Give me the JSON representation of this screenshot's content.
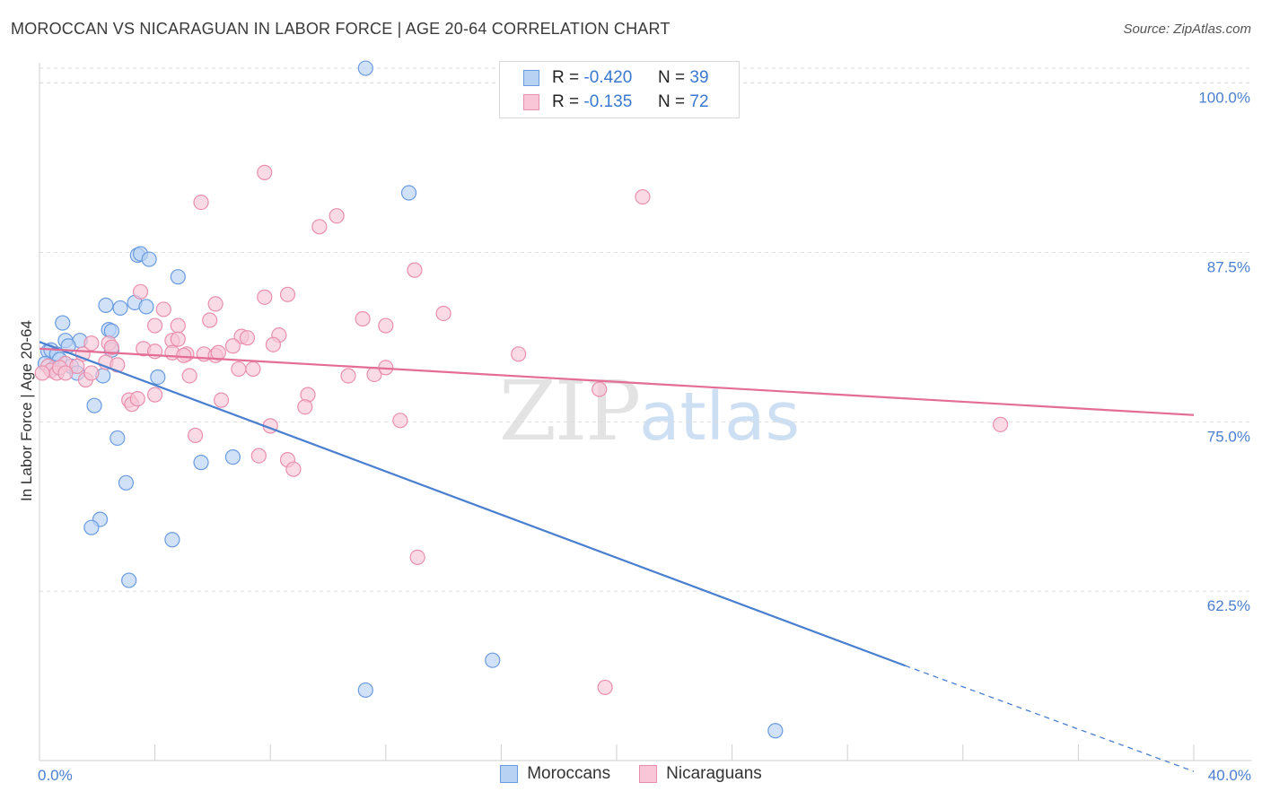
{
  "title": "MOROCCAN VS NICARAGUAN IN LABOR FORCE | AGE 20-64 CORRELATION CHART",
  "source": "Source: ZipAtlas.com",
  "watermark": {
    "zip": "ZIP",
    "atlas": "atlas"
  },
  "colors": {
    "blue": "#4a7fd0",
    "blue_fill": "#b8d2f4",
    "pink": "#e46d96",
    "pink_fill": "#f8c6d6",
    "grid": "#dcdcdc"
  },
  "legend_top": [
    {
      "r_label": "R =",
      "r_value": "-0.420",
      "n_label": "N =",
      "n_value": "39"
    },
    {
      "r_label": "R =",
      "r_value": "-0.135",
      "n_label": "N =",
      "n_value": "72"
    }
  ],
  "legend_bottom": [
    "Moroccans",
    "Nicaraguans"
  ],
  "chart_data": {
    "type": "scatter",
    "xlabel": "",
    "ylabel": "In Labor Force | Age 20-64",
    "xlim": [
      0,
      40
    ],
    "ylim": [
      50,
      101.5
    ],
    "x_tick_labels": [
      {
        "value": 0,
        "label": "0.0%"
      },
      {
        "value": 40,
        "label": "40.0%"
      }
    ],
    "y_tick_labels": [
      {
        "value": 100,
        "label": "100.0%"
      },
      {
        "value": 87.5,
        "label": "87.5%"
      },
      {
        "value": 75,
        "label": "75.0%"
      },
      {
        "value": 62.5,
        "label": "62.5%"
      }
    ],
    "series": [
      {
        "name": "Moroccans",
        "r": -0.42,
        "n": 39,
        "trend": {
          "x": [
            0,
            30.0
          ],
          "y": [
            80.9,
            57.0
          ],
          "dashed_to": [
            40.0,
            49.2
          ]
        },
        "points": [
          [
            11.3,
            101.1
          ],
          [
            12.8,
            91.9
          ],
          [
            3.4,
            87.3
          ],
          [
            3.5,
            87.4
          ],
          [
            3.8,
            87.0
          ],
          [
            4.8,
            85.7
          ],
          [
            2.3,
            83.6
          ],
          [
            2.8,
            83.4
          ],
          [
            3.3,
            83.8
          ],
          [
            3.7,
            83.5
          ],
          [
            0.8,
            82.3
          ],
          [
            2.4,
            81.8
          ],
          [
            2.5,
            81.7
          ],
          [
            0.9,
            81.0
          ],
          [
            1.4,
            81.0
          ],
          [
            1.0,
            80.6
          ],
          [
            0.3,
            80.2
          ],
          [
            0.4,
            80.3
          ],
          [
            0.6,
            80.0
          ],
          [
            0.7,
            79.6
          ],
          [
            0.2,
            79.3
          ],
          [
            0.5,
            79.0
          ],
          [
            1.1,
            79.1
          ],
          [
            1.3,
            78.6
          ],
          [
            2.2,
            78.4
          ],
          [
            4.1,
            78.3
          ],
          [
            2.5,
            80.3
          ],
          [
            1.9,
            76.2
          ],
          [
            2.7,
            73.8
          ],
          [
            5.6,
            72.0
          ],
          [
            6.7,
            72.4
          ],
          [
            3.0,
            70.5
          ],
          [
            2.1,
            67.8
          ],
          [
            1.8,
            67.2
          ],
          [
            4.6,
            66.3
          ],
          [
            3.1,
            63.3
          ],
          [
            15.7,
            57.4
          ],
          [
            11.3,
            55.2
          ],
          [
            25.5,
            52.2
          ]
        ]
      },
      {
        "name": "Nicaraguans",
        "r": -0.135,
        "n": 72,
        "trend": {
          "x": [
            0,
            40.0
          ],
          "y": [
            80.4,
            75.5
          ]
        },
        "points": [
          [
            7.8,
            93.4
          ],
          [
            5.6,
            91.2
          ],
          [
            20.9,
            91.6
          ],
          [
            10.3,
            90.2
          ],
          [
            9.7,
            89.4
          ],
          [
            13.0,
            86.2
          ],
          [
            3.5,
            84.6
          ],
          [
            7.8,
            84.2
          ],
          [
            8.6,
            84.4
          ],
          [
            6.1,
            83.7
          ],
          [
            4.3,
            83.3
          ],
          [
            14.0,
            83.0
          ],
          [
            11.2,
            82.6
          ],
          [
            5.9,
            82.5
          ],
          [
            4.0,
            82.1
          ],
          [
            4.8,
            82.1
          ],
          [
            12.0,
            82.1
          ],
          [
            8.3,
            81.4
          ],
          [
            7.0,
            81.3
          ],
          [
            7.2,
            81.2
          ],
          [
            4.6,
            81.0
          ],
          [
            4.8,
            81.1
          ],
          [
            1.8,
            80.8
          ],
          [
            2.4,
            80.8
          ],
          [
            2.5,
            80.5
          ],
          [
            6.7,
            80.6
          ],
          [
            8.1,
            80.7
          ],
          [
            3.6,
            80.4
          ],
          [
            4.0,
            80.2
          ],
          [
            4.6,
            80.1
          ],
          [
            5.1,
            80.0
          ],
          [
            5.0,
            79.9
          ],
          [
            5.7,
            80.0
          ],
          [
            6.1,
            79.9
          ],
          [
            6.2,
            80.1
          ],
          [
            16.6,
            80.0
          ],
          [
            1.5,
            80.0
          ],
          [
            2.3,
            79.4
          ],
          [
            2.7,
            79.2
          ],
          [
            0.9,
            79.3
          ],
          [
            1.3,
            79.1
          ],
          [
            0.3,
            79.1
          ],
          [
            0.4,
            78.8
          ],
          [
            0.6,
            78.6
          ],
          [
            0.7,
            79.0
          ],
          [
            0.9,
            78.6
          ],
          [
            1.6,
            78.1
          ],
          [
            1.8,
            78.6
          ],
          [
            6.9,
            78.9
          ],
          [
            7.4,
            78.9
          ],
          [
            10.7,
            78.4
          ],
          [
            11.6,
            78.5
          ],
          [
            12.0,
            79.0
          ],
          [
            5.2,
            78.4
          ],
          [
            19.4,
            77.4
          ],
          [
            4.0,
            77.0
          ],
          [
            3.1,
            76.6
          ],
          [
            3.2,
            76.3
          ],
          [
            3.4,
            76.7
          ],
          [
            6.3,
            76.6
          ],
          [
            9.3,
            77.0
          ],
          [
            9.2,
            76.1
          ],
          [
            8.0,
            74.7
          ],
          [
            12.5,
            75.1
          ],
          [
            33.3,
            74.8
          ],
          [
            5.4,
            74.0
          ],
          [
            7.6,
            72.5
          ],
          [
            8.6,
            72.2
          ],
          [
            8.8,
            71.5
          ],
          [
            13.1,
            65.0
          ],
          [
            19.6,
            55.4
          ],
          [
            0.1,
            78.6
          ]
        ]
      }
    ]
  }
}
